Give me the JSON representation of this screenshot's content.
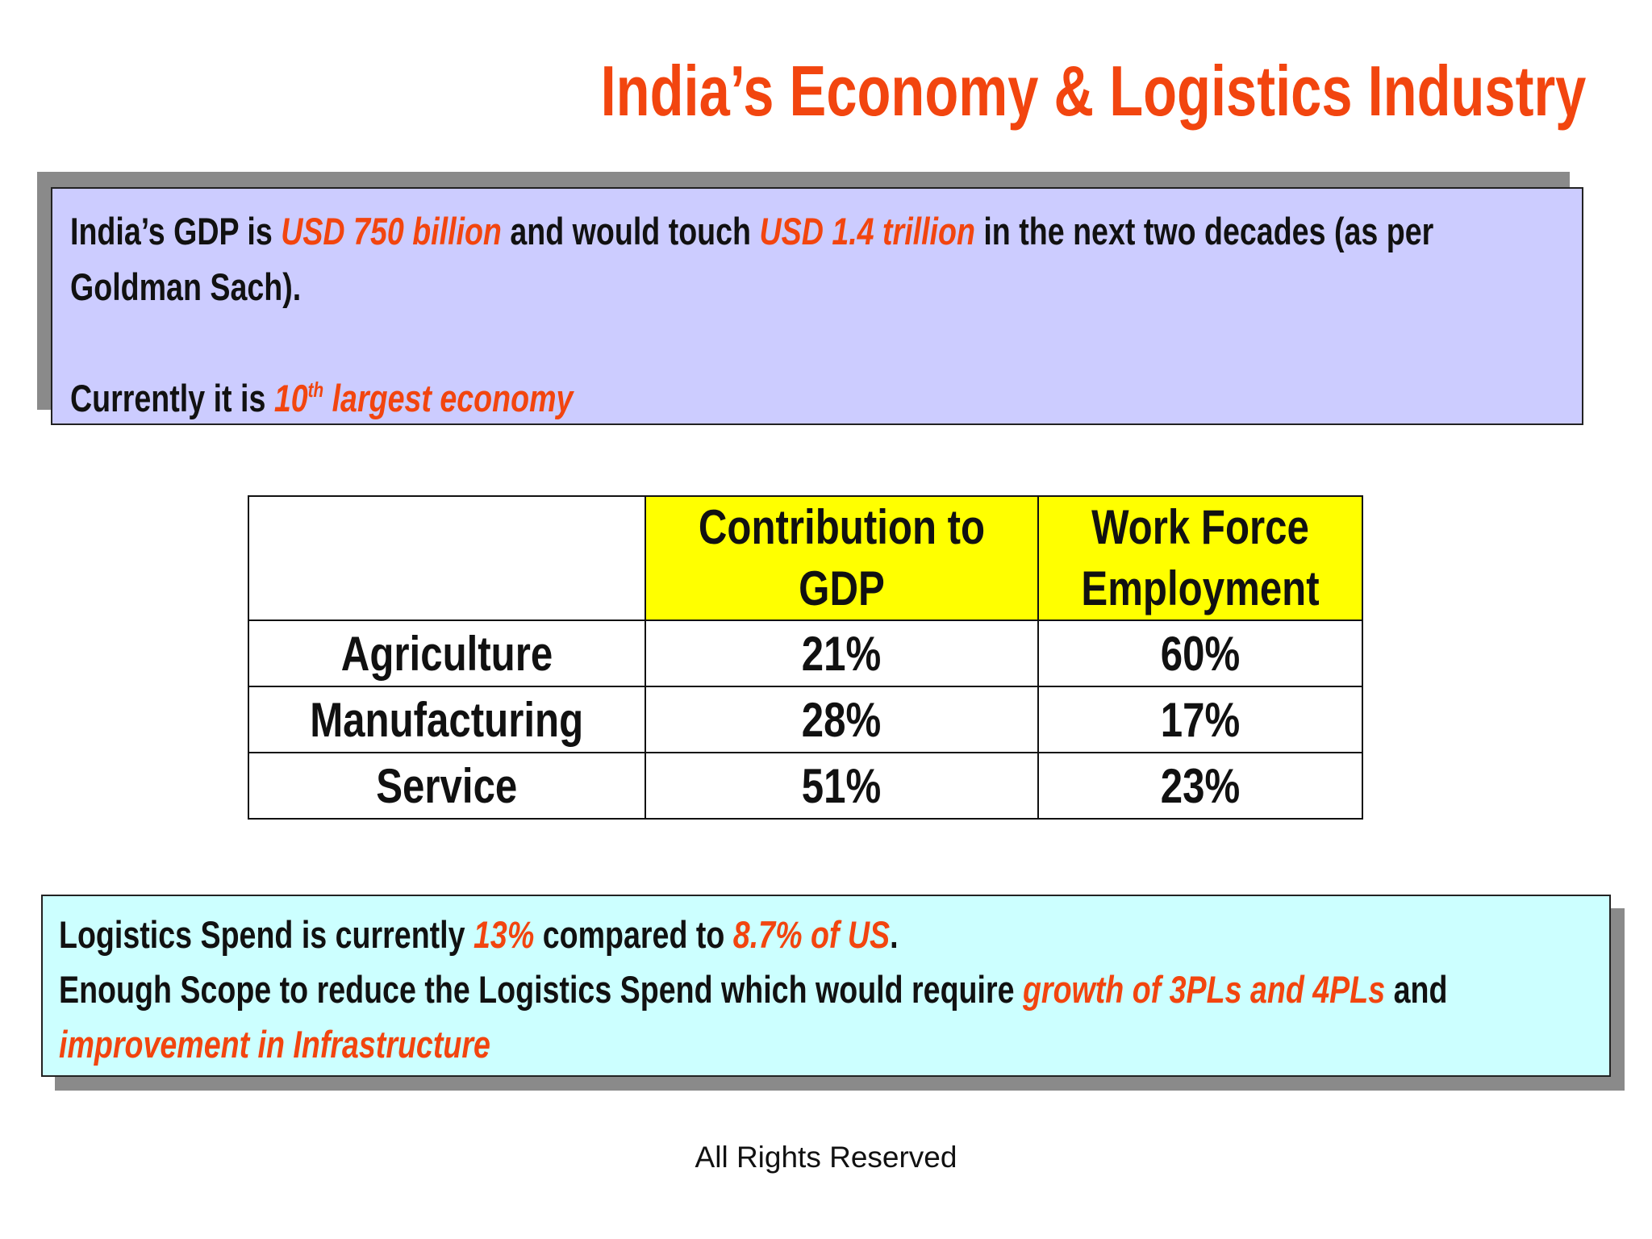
{
  "title": "India’s Economy & Logistics Industry",
  "gdp_box": {
    "paragraphs": [
      [
        {
          "text": "India’s GDP is "
        },
        {
          "text": "USD 750 billion",
          "highlight": true
        },
        {
          "text": " and would touch "
        },
        {
          "text": "USD 1.4 trillion",
          "highlight": true
        },
        {
          "text": " in the next two decades (as per Goldman Sach)."
        }
      ],
      [
        {
          "text": "Currently it is "
        },
        {
          "text": "10",
          "highlight": true
        },
        {
          "text": "th",
          "highlight": true,
          "superscript": true
        },
        {
          "text": " largest economy",
          "highlight": true
        }
      ]
    ]
  },
  "table": {
    "header": [
      "Contribution to GDP",
      "Work Force Employment"
    ],
    "rows": [
      [
        "Agriculture",
        "21%",
        "60%"
      ],
      [
        "Manufacturing",
        "28%",
        "17%"
      ],
      [
        "Service",
        "51%",
        "23%"
      ]
    ]
  },
  "logistics_box": {
    "paragraphs": [
      [
        {
          "text": "Logistics Spend is currently "
        },
        {
          "text": "13%",
          "highlight": true
        },
        {
          "text": " compared to "
        },
        {
          "text": "8.7% of US",
          "highlight": true
        },
        {
          "text": "."
        }
      ],
      [
        {
          "text": "Enough Scope to reduce the Logistics Spend which would require "
        },
        {
          "text": "growth of 3PLs and 4PLs",
          "highlight": true
        },
        {
          "text": " and "
        },
        {
          "text": "improvement in Infrastructure",
          "highlight": true
        }
      ]
    ]
  },
  "footer": "All Rights Reserved"
}
